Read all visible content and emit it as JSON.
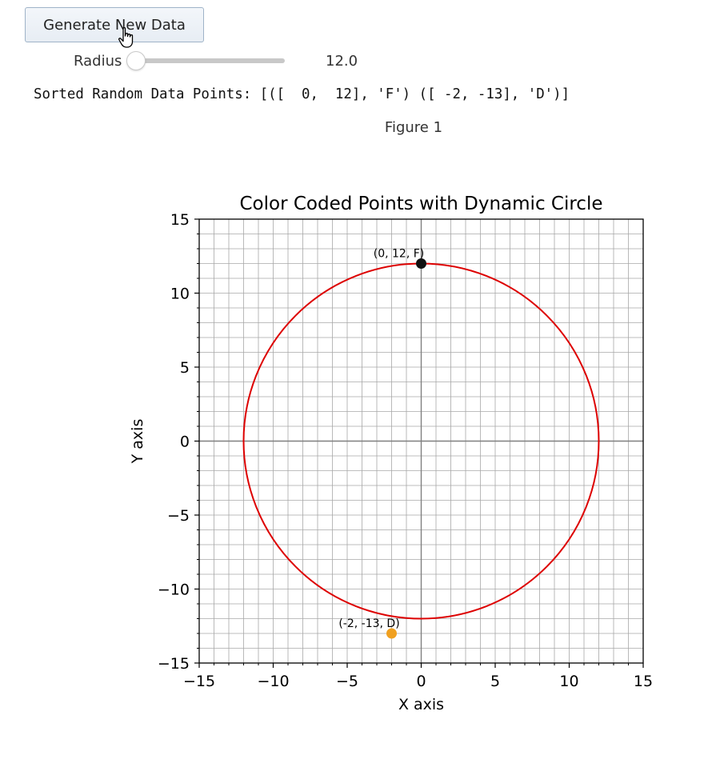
{
  "controls": {
    "button_label": "Generate New Data",
    "slider_label": "Radius",
    "slider_value": "12.0",
    "radius": 12.0,
    "slider_min": 12.0
  },
  "output_text": "Sorted Random Data Points: [([  0,  12], 'F') ([ -2, -13], 'D')]",
  "figure_label": "Figure 1",
  "chart_data": {
    "type": "scatter",
    "title": "Color Coded Points with Dynamic Circle",
    "xlabel": "X axis",
    "ylabel": "Y axis",
    "xlim": [
      -15,
      15
    ],
    "ylim": [
      -15,
      15
    ],
    "xticks": [
      -15,
      -10,
      -5,
      0,
      5,
      10,
      15
    ],
    "yticks": [
      -15,
      -10,
      -5,
      0,
      5,
      10,
      15
    ],
    "xtick_labels": [
      "−15",
      "−10",
      "−5",
      "0",
      "5",
      "10",
      "15"
    ],
    "ytick_labels": [
      "−15",
      "−10",
      "−5",
      "0",
      "5",
      "10",
      "15"
    ],
    "grid": true,
    "minor_grid_step": 1,
    "circle": {
      "center": [
        0,
        0
      ],
      "radius": 12,
      "color": "#dd0000"
    },
    "points": [
      {
        "x": 0,
        "y": 12,
        "label": "(0, 12, F)",
        "color": "#111111"
      },
      {
        "x": -2,
        "y": -13,
        "label": "(-2, -13, D)",
        "color": "#f0a020"
      }
    ]
  }
}
